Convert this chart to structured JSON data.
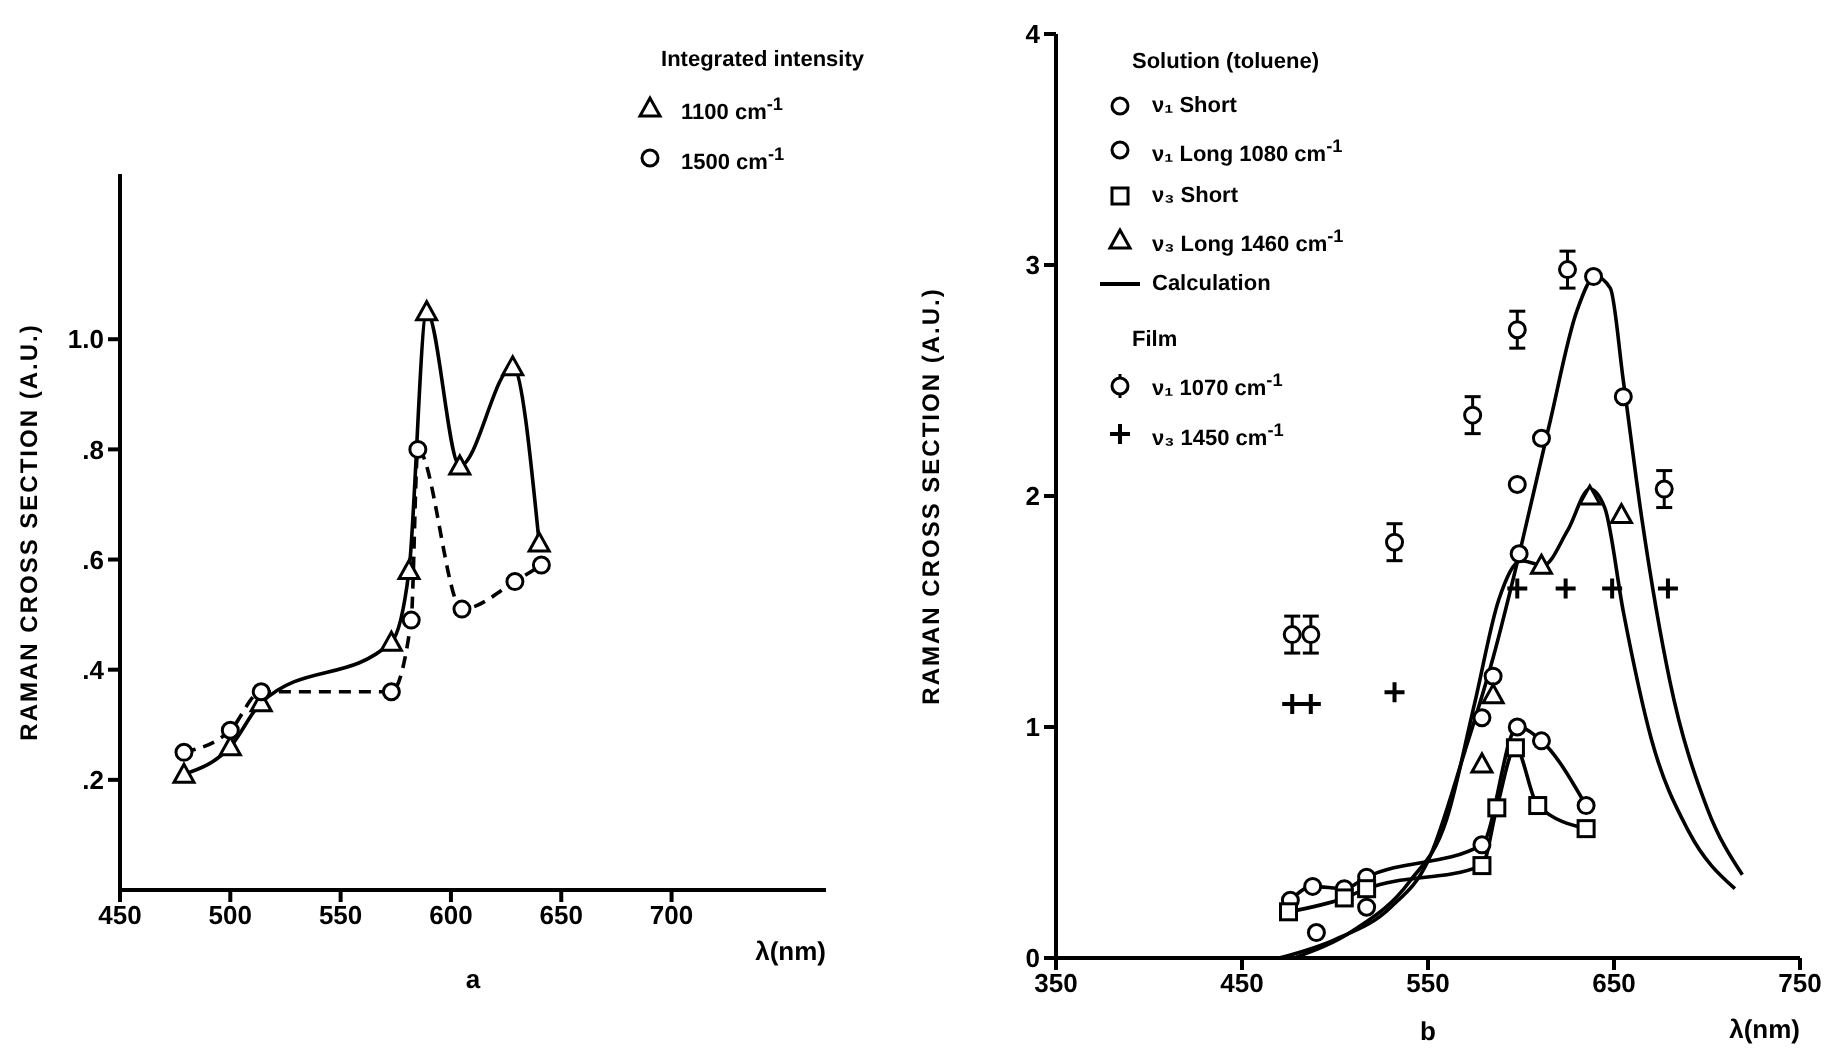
{
  "chart_data": [
    {
      "type": "line",
      "xlabel": "λ(nm)",
      "ylabel": "RAMAN CROSS SECTION (A.U.)",
      "legend_title": "Integrated intensity",
      "legend": "top right",
      "annotations": [
        "a"
      ],
      "xlim": [
        450,
        770
      ],
      "xticks": [
        450,
        500,
        550,
        600,
        650,
        700
      ],
      "ylim": [
        0,
        1.3
      ],
      "yticks": [
        {
          "value": 0.2,
          "label": ".2"
        },
        {
          "value": 0.4,
          "label": ".4"
        },
        {
          "value": 0.6,
          "label": ".6"
        },
        {
          "value": 0.8,
          "label": ".8"
        },
        {
          "value": 1.0,
          "label": "1.0"
        }
      ],
      "series": [
        {
          "name": "1100 cm$^{-1}$",
          "color": "#000000",
          "marker": "triangle",
          "line_style": "solid",
          "x": [
            479,
            500,
            514,
            573,
            581,
            589,
            604,
            628,
            640
          ],
          "values": [
            0.21,
            0.26,
            0.34,
            0.45,
            0.58,
            1.05,
            0.77,
            0.95,
            0.63
          ]
        },
        {
          "name": "1500 cm$^{-1}$",
          "color": "#000000",
          "marker": "circle",
          "line_style": "dashed",
          "x": [
            479,
            500,
            514,
            573,
            582,
            585,
            605,
            629,
            641
          ],
          "values": [
            0.25,
            0.29,
            0.36,
            0.36,
            0.49,
            0.8,
            0.51,
            0.56,
            0.59
          ]
        }
      ]
    },
    {
      "type": "line",
      "xlabel": "λ(nm)",
      "ylabel": "RAMAN CROSS SECTION (A.U.)",
      "legend_title": "Solution (toluene)",
      "legend": "top left",
      "annotations": [
        "b",
        "Film"
      ],
      "xlim": [
        350,
        750
      ],
      "xticks": [
        350,
        450,
        550,
        650,
        750
      ],
      "ylim": [
        0,
        4
      ],
      "yticks": [
        0,
        1,
        2,
        3,
        4
      ],
      "series": [
        {
          "name": "ν₁ Short",
          "color": "#000000",
          "marker": "circle",
          "x": [
            476,
            488,
            505,
            517,
            579,
            598,
            611,
            635
          ],
          "values": [
            0.25,
            0.31,
            0.3,
            0.35,
            0.49,
            1.0,
            0.94,
            0.66
          ]
        },
        {
          "name": "ν₁ Long 1080 cm$^{-1}$",
          "type": "scatter",
          "color": "#000000",
          "marker": "circle",
          "x": [
            490,
            517,
            579,
            585,
            598,
            599,
            611,
            639,
            655
          ],
          "values": [
            0.11,
            0.22,
            1.04,
            1.22,
            2.05,
            1.75,
            2.25,
            2.95,
            2.43
          ]
        },
        {
          "name": "ν₃ Short",
          "color": "#000000",
          "marker": "square",
          "x": [
            475,
            505,
            517,
            579,
            587,
            597,
            609,
            635
          ],
          "values": [
            0.2,
            0.26,
            0.3,
            0.4,
            0.65,
            0.91,
            0.66,
            0.56
          ]
        },
        {
          "name": "ν₃ Long 1460 cm$^{-1}$",
          "type": "scatter",
          "color": "#000000",
          "marker": "triangle",
          "x": [
            579,
            585,
            611,
            637,
            654
          ],
          "values": [
            0.84,
            1.14,
            1.7,
            2.0,
            1.92
          ]
        },
        {
          "name": "Calculation",
          "color": "#000000",
          "marker": "none",
          "x": [
            470,
            500,
            530,
            550,
            570,
            585,
            600,
            615,
            630,
            640,
            648,
            655,
            665,
            680,
            700,
            719
          ],
          "values": [
            0,
            0.08,
            0.22,
            0.42,
            0.9,
            1.3,
            1.78,
            2.3,
            2.8,
            2.95,
            2.9,
            2.5,
            1.9,
            1.2,
            0.65,
            0.36
          ]
        },
        {
          "color": "#000000",
          "marker": "none",
          "x": [
            478,
            510,
            540,
            560,
            575,
            588,
            600,
            612,
            625,
            637,
            645,
            655,
            670,
            690,
            715
          ],
          "values": [
            0,
            0.12,
            0.33,
            0.6,
            1.1,
            1.55,
            1.72,
            1.7,
            1.85,
            2.03,
            1.95,
            1.5,
            0.95,
            0.55,
            0.3
          ]
        },
        {
          "name": "ν₁ 1070 cm$^{-1}$",
          "type": "scatter",
          "color": "#000000",
          "marker": "circle",
          "x": [
            477,
            487,
            532,
            574,
            598,
            625,
            677
          ],
          "values": [
            1.4,
            1.4,
            1.8,
            2.35,
            2.72,
            2.98,
            2.03
          ],
          "errors": [
            0.08,
            0.08,
            0.08,
            0.08,
            0.08,
            0.08,
            0.08
          ]
        },
        {
          "name": "ν₃ 1450 cm$^{-1}$",
          "type": "scatter",
          "color": "#000000",
          "marker": "cross",
          "x": [
            477,
            487,
            532,
            598,
            624,
            649,
            679
          ],
          "values": [
            1.1,
            1.1,
            1.15,
            1.6,
            1.6,
            1.6,
            1.6
          ]
        }
      ]
    }
  ]
}
